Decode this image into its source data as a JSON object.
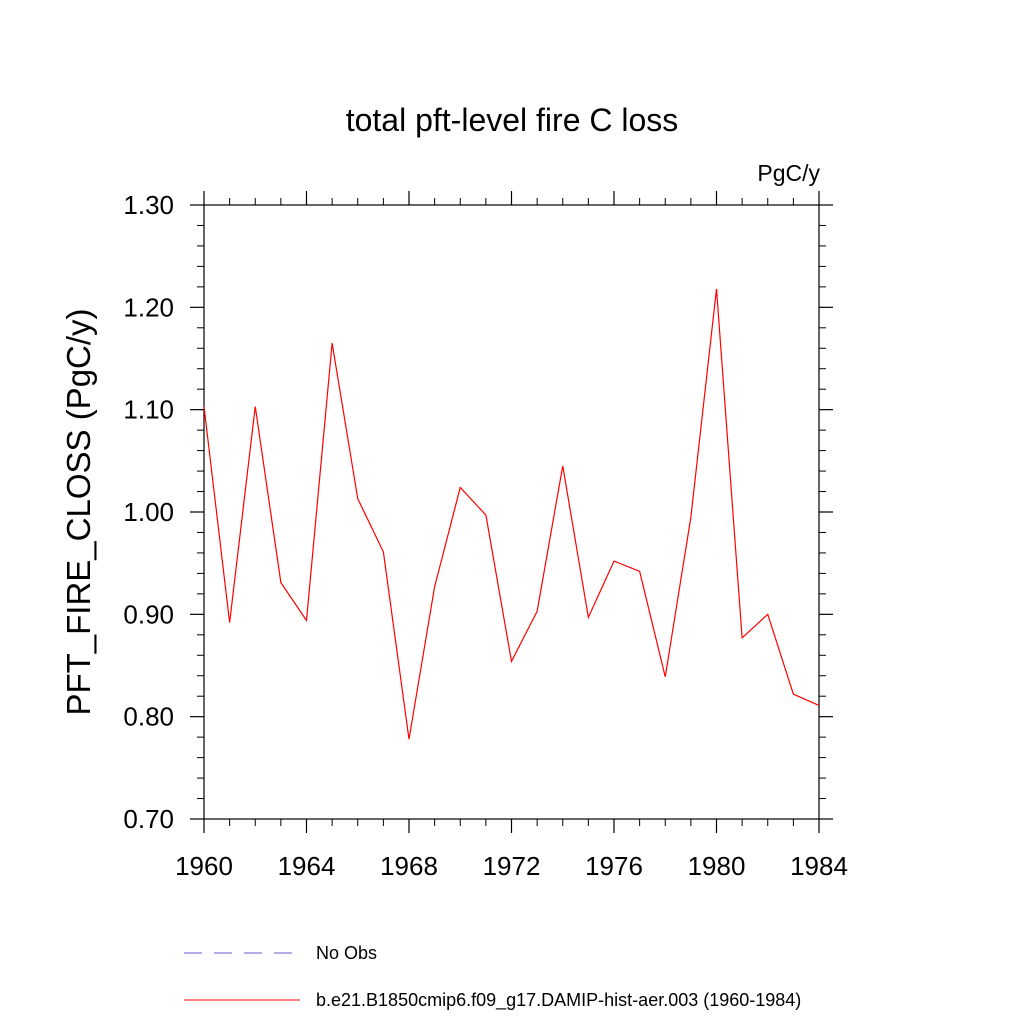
{
  "chart_data": {
    "type": "line",
    "title": "total pft-level fire C loss",
    "units": "PgC/y",
    "ylabel": "PFT_FIRE_CLOSS  (PgC/y)",
    "xlabel": "",
    "xlim": [
      1960,
      1984
    ],
    "ylim": [
      0.7,
      1.3
    ],
    "x_ticks": [
      1960,
      1964,
      1968,
      1972,
      1976,
      1980,
      1984
    ],
    "x_tick_labels": [
      "1960",
      "1964",
      "1968",
      "1972",
      "1976",
      "1980",
      "1984"
    ],
    "y_ticks": [
      0.7,
      0.8,
      0.9,
      1.0,
      1.1,
      1.2,
      1.3
    ],
    "y_tick_labels": [
      "0.70",
      "0.80",
      "0.90",
      "1.00",
      "1.10",
      "1.20",
      "1.30"
    ],
    "grid": false,
    "legend_position": "bottom",
    "x": [
      1960,
      1961,
      1962,
      1963,
      1964,
      1965,
      1966,
      1967,
      1968,
      1969,
      1970,
      1971,
      1972,
      1973,
      1974,
      1975,
      1976,
      1977,
      1978,
      1979,
      1980,
      1981,
      1982,
      1983,
      1984
    ],
    "series": [
      {
        "name": "b.e21.B1850cmip6.f09_g17.DAMIP-hist-aer.003 (1960-1984)",
        "color": "#ff0000",
        "style": "solid",
        "values": [
          1.103,
          0.892,
          1.103,
          0.931,
          0.894,
          1.165,
          1.013,
          0.961,
          0.778,
          0.927,
          1.024,
          0.997,
          0.854,
          0.903,
          1.045,
          0.897,
          0.952,
          0.942,
          0.839,
          0.995,
          1.218,
          0.877,
          0.9,
          0.822,
          0.811
        ]
      }
    ],
    "legend": [
      {
        "label": "No Obs",
        "color": "#6a5acd",
        "style": "dashed"
      },
      {
        "label": "b.e21.B1850cmip6.f09_g17.DAMIP-hist-aer.003 (1960-1984)",
        "color": "#ff0000",
        "style": "solid"
      }
    ]
  }
}
